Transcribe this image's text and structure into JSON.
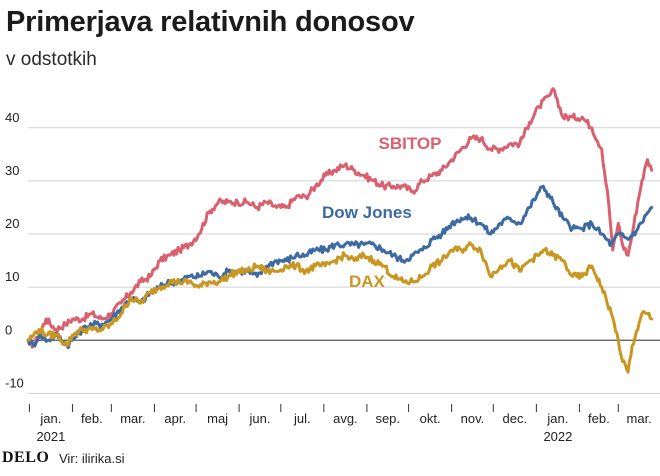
{
  "header": {
    "title": "Primerjava relativnih donosov",
    "subtitle": "v odstotkih"
  },
  "footer": {
    "logo": "DELO",
    "source": "Vir: ilirika.si"
  },
  "chart_data": {
    "type": "line",
    "title": "Primerjava relativnih donosov",
    "subtitle": "v odstotkih",
    "xlabel": "",
    "ylabel": "",
    "ylim": [
      -12,
      49
    ],
    "yticks": [
      -10,
      0,
      10,
      20,
      30,
      40
    ],
    "ytick_labels": [
      "-10",
      "0",
      "10",
      "20",
      "30",
      "40"
    ],
    "x_start": "2021-01-01",
    "x_end": "2022-03-31",
    "months": [
      {
        "label": "jan.",
        "date": "2021-01-01",
        "year": "2021"
      },
      {
        "label": "feb.",
        "date": "2021-02-01"
      },
      {
        "label": "mar.",
        "date": "2021-03-01"
      },
      {
        "label": "apr.",
        "date": "2021-04-01"
      },
      {
        "label": "maj",
        "date": "2021-05-01"
      },
      {
        "label": "jun.",
        "date": "2021-06-01"
      },
      {
        "label": "jul.",
        "date": "2021-07-01"
      },
      {
        "label": "avg.",
        "date": "2021-08-01"
      },
      {
        "label": "sep.",
        "date": "2021-09-01"
      },
      {
        "label": "okt.",
        "date": "2021-10-01"
      },
      {
        "label": "nov.",
        "date": "2021-11-01"
      },
      {
        "label": "dec.",
        "date": "2021-12-01"
      },
      {
        "label": "jan.",
        "date": "2022-01-01",
        "year": "2022"
      },
      {
        "label": "feb.",
        "date": "2022-02-01"
      },
      {
        "label": "mar.",
        "date": "2022-03-01"
      }
    ],
    "grid": "horizontal",
    "series": [
      {
        "name": "SBITOP",
        "color": "#d9606e",
        "points": [
          [
            "2020-12-31",
            0
          ],
          [
            "2021-01-04",
            -1
          ],
          [
            "2021-01-08",
            1
          ],
          [
            "2021-01-13",
            4
          ],
          [
            "2021-01-20",
            2
          ],
          [
            "2021-01-27",
            3
          ],
          [
            "2021-02-01",
            4
          ],
          [
            "2021-02-08",
            4
          ],
          [
            "2021-02-15",
            5
          ],
          [
            "2021-02-22",
            4
          ],
          [
            "2021-03-01",
            5
          ],
          [
            "2021-03-08",
            7
          ],
          [
            "2021-03-15",
            9
          ],
          [
            "2021-03-22",
            11
          ],
          [
            "2021-03-29",
            12
          ],
          [
            "2021-04-05",
            15
          ],
          [
            "2021-04-12",
            16
          ],
          [
            "2021-04-19",
            17
          ],
          [
            "2021-04-26",
            18
          ],
          [
            "2021-05-03",
            20
          ],
          [
            "2021-05-10",
            24
          ],
          [
            "2021-05-17",
            26
          ],
          [
            "2021-05-24",
            26
          ],
          [
            "2021-05-31",
            26
          ],
          [
            "2021-06-07",
            26
          ],
          [
            "2021-06-14",
            25
          ],
          [
            "2021-06-21",
            26
          ],
          [
            "2021-06-28",
            25
          ],
          [
            "2021-07-05",
            25
          ],
          [
            "2021-07-12",
            27
          ],
          [
            "2021-07-19",
            27
          ],
          [
            "2021-07-26",
            29
          ],
          [
            "2021-08-02",
            31
          ],
          [
            "2021-08-09",
            32
          ],
          [
            "2021-08-16",
            33
          ],
          [
            "2021-08-23",
            32
          ],
          [
            "2021-08-30",
            31
          ],
          [
            "2021-09-06",
            30
          ],
          [
            "2021-09-13",
            29
          ],
          [
            "2021-09-20",
            29
          ],
          [
            "2021-09-27",
            29
          ],
          [
            "2021-10-04",
            28
          ],
          [
            "2021-10-11",
            30
          ],
          [
            "2021-10-18",
            31
          ],
          [
            "2021-10-25",
            32
          ],
          [
            "2021-11-01",
            34
          ],
          [
            "2021-11-08",
            36
          ],
          [
            "2021-11-15",
            38
          ],
          [
            "2021-11-22",
            38
          ],
          [
            "2021-11-29",
            36
          ],
          [
            "2021-12-06",
            36
          ],
          [
            "2021-12-13",
            37
          ],
          [
            "2021-12-20",
            37
          ],
          [
            "2021-12-27",
            41
          ],
          [
            "2022-01-03",
            44
          ],
          [
            "2022-01-10",
            46
          ],
          [
            "2022-01-14",
            47
          ],
          [
            "2022-01-20",
            42
          ],
          [
            "2022-01-27",
            42
          ],
          [
            "2022-02-03",
            42
          ],
          [
            "2022-02-10",
            40
          ],
          [
            "2022-02-17",
            36
          ],
          [
            "2022-02-22",
            26
          ],
          [
            "2022-02-25",
            17
          ],
          [
            "2022-03-01",
            22
          ],
          [
            "2022-03-04",
            18
          ],
          [
            "2022-03-08",
            16
          ],
          [
            "2022-03-11",
            20
          ],
          [
            "2022-03-15",
            26
          ],
          [
            "2022-03-18",
            30
          ],
          [
            "2022-03-22",
            34
          ],
          [
            "2022-03-25",
            32
          ]
        ]
      },
      {
        "name": "Dow Jones",
        "color": "#3d6aa3",
        "points": [
          [
            "2020-12-31",
            0
          ],
          [
            "2021-01-04",
            -1
          ],
          [
            "2021-01-08",
            1
          ],
          [
            "2021-01-14",
            0
          ],
          [
            "2021-01-21",
            1
          ],
          [
            "2021-01-28",
            -1
          ],
          [
            "2021-02-01",
            0
          ],
          [
            "2021-02-08",
            2
          ],
          [
            "2021-02-15",
            3
          ],
          [
            "2021-02-22",
            3
          ],
          [
            "2021-03-01",
            4
          ],
          [
            "2021-03-08",
            6
          ],
          [
            "2021-03-15",
            8
          ],
          [
            "2021-03-22",
            7
          ],
          [
            "2021-03-29",
            9
          ],
          [
            "2021-04-05",
            10
          ],
          [
            "2021-04-12",
            11
          ],
          [
            "2021-04-19",
            11
          ],
          [
            "2021-04-26",
            12
          ],
          [
            "2021-05-03",
            12
          ],
          [
            "2021-05-10",
            13
          ],
          [
            "2021-05-17",
            12
          ],
          [
            "2021-05-24",
            13
          ],
          [
            "2021-05-31",
            13
          ],
          [
            "2021-06-07",
            13
          ],
          [
            "2021-06-14",
            12
          ],
          [
            "2021-06-21",
            14
          ],
          [
            "2021-06-28",
            15
          ],
          [
            "2021-07-05",
            15
          ],
          [
            "2021-07-12",
            16
          ],
          [
            "2021-07-19",
            16
          ],
          [
            "2021-07-26",
            17
          ],
          [
            "2021-08-02",
            17
          ],
          [
            "2021-08-09",
            18
          ],
          [
            "2021-08-16",
            18
          ],
          [
            "2021-08-23",
            18
          ],
          [
            "2021-08-30",
            18
          ],
          [
            "2021-09-06",
            18
          ],
          [
            "2021-09-13",
            17
          ],
          [
            "2021-09-20",
            16
          ],
          [
            "2021-09-27",
            15
          ],
          [
            "2021-10-04",
            16
          ],
          [
            "2021-10-11",
            17
          ],
          [
            "2021-10-18",
            19
          ],
          [
            "2021-10-25",
            20
          ],
          [
            "2021-11-01",
            22
          ],
          [
            "2021-11-08",
            23
          ],
          [
            "2021-11-15",
            23
          ],
          [
            "2021-11-22",
            22
          ],
          [
            "2021-11-29",
            20
          ],
          [
            "2021-12-06",
            22
          ],
          [
            "2021-12-13",
            23
          ],
          [
            "2021-12-20",
            22
          ],
          [
            "2021-12-27",
            25
          ],
          [
            "2022-01-03",
            28
          ],
          [
            "2022-01-06",
            29
          ],
          [
            "2022-01-13",
            26
          ],
          [
            "2022-01-20",
            23
          ],
          [
            "2022-01-27",
            21
          ],
          [
            "2022-02-03",
            21
          ],
          [
            "2022-02-10",
            22
          ],
          [
            "2022-02-17",
            20
          ],
          [
            "2022-02-24",
            18
          ],
          [
            "2022-03-01",
            20
          ],
          [
            "2022-03-08",
            19
          ],
          [
            "2022-03-15",
            21
          ],
          [
            "2022-03-22",
            24
          ],
          [
            "2022-03-25",
            25
          ]
        ]
      },
      {
        "name": "DAX",
        "color": "#c9961f",
        "points": [
          [
            "2020-12-31",
            0
          ],
          [
            "2021-01-04",
            1
          ],
          [
            "2021-01-08",
            2
          ],
          [
            "2021-01-14",
            1
          ],
          [
            "2021-01-21",
            1
          ],
          [
            "2021-01-28",
            -1
          ],
          [
            "2021-02-01",
            1
          ],
          [
            "2021-02-08",
            2
          ],
          [
            "2021-02-15",
            2
          ],
          [
            "2021-02-22",
            2
          ],
          [
            "2021-03-01",
            3
          ],
          [
            "2021-03-08",
            5
          ],
          [
            "2021-03-15",
            8
          ],
          [
            "2021-03-22",
            7
          ],
          [
            "2021-03-29",
            9
          ],
          [
            "2021-04-05",
            10
          ],
          [
            "2021-04-12",
            11
          ],
          [
            "2021-04-19",
            11
          ],
          [
            "2021-04-26",
            11
          ],
          [
            "2021-05-03",
            10
          ],
          [
            "2021-05-10",
            11
          ],
          [
            "2021-05-17",
            11
          ],
          [
            "2021-05-24",
            12
          ],
          [
            "2021-05-31",
            13
          ],
          [
            "2021-06-07",
            13
          ],
          [
            "2021-06-14",
            14
          ],
          [
            "2021-06-21",
            13
          ],
          [
            "2021-06-28",
            13
          ],
          [
            "2021-07-05",
            14
          ],
          [
            "2021-07-12",
            14
          ],
          [
            "2021-07-19",
            13
          ],
          [
            "2021-07-26",
            14
          ],
          [
            "2021-08-02",
            14
          ],
          [
            "2021-08-09",
            15
          ],
          [
            "2021-08-16",
            16
          ],
          [
            "2021-08-23",
            15
          ],
          [
            "2021-08-30",
            16
          ],
          [
            "2021-09-06",
            15
          ],
          [
            "2021-09-13",
            14
          ],
          [
            "2021-09-20",
            12
          ],
          [
            "2021-09-27",
            11
          ],
          [
            "2021-10-04",
            11
          ],
          [
            "2021-10-11",
            12
          ],
          [
            "2021-10-18",
            14
          ],
          [
            "2021-10-25",
            15
          ],
          [
            "2021-11-01",
            17
          ],
          [
            "2021-11-08",
            17
          ],
          [
            "2021-11-15",
            18
          ],
          [
            "2021-11-22",
            17
          ],
          [
            "2021-11-29",
            12
          ],
          [
            "2021-12-06",
            14
          ],
          [
            "2021-12-13",
            15
          ],
          [
            "2021-12-20",
            13
          ],
          [
            "2021-12-27",
            15
          ],
          [
            "2022-01-03",
            16
          ],
          [
            "2022-01-06",
            17
          ],
          [
            "2022-01-13",
            16
          ],
          [
            "2022-01-20",
            15
          ],
          [
            "2022-01-27",
            12
          ],
          [
            "2022-02-03",
            12
          ],
          [
            "2022-02-10",
            14
          ],
          [
            "2022-02-17",
            10
          ],
          [
            "2022-02-24",
            5
          ],
          [
            "2022-03-01",
            0
          ],
          [
            "2022-03-04",
            -4
          ],
          [
            "2022-03-08",
            -6
          ],
          [
            "2022-03-11",
            -1
          ],
          [
            "2022-03-15",
            2
          ],
          [
            "2022-03-18",
            5
          ],
          [
            "2022-03-22",
            5
          ],
          [
            "2022-03-25",
            4
          ]
        ]
      }
    ],
    "labels": [
      {
        "text": "SBITOP",
        "series": "SBITOP",
        "x": "2021-10-02",
        "y": 36
      },
      {
        "text": "Dow Jones",
        "series": "Dow Jones",
        "x": "2021-09-01",
        "y": 23
      },
      {
        "text": "DAX",
        "series": "DAX",
        "x": "2021-09-01",
        "y": 10
      }
    ]
  }
}
